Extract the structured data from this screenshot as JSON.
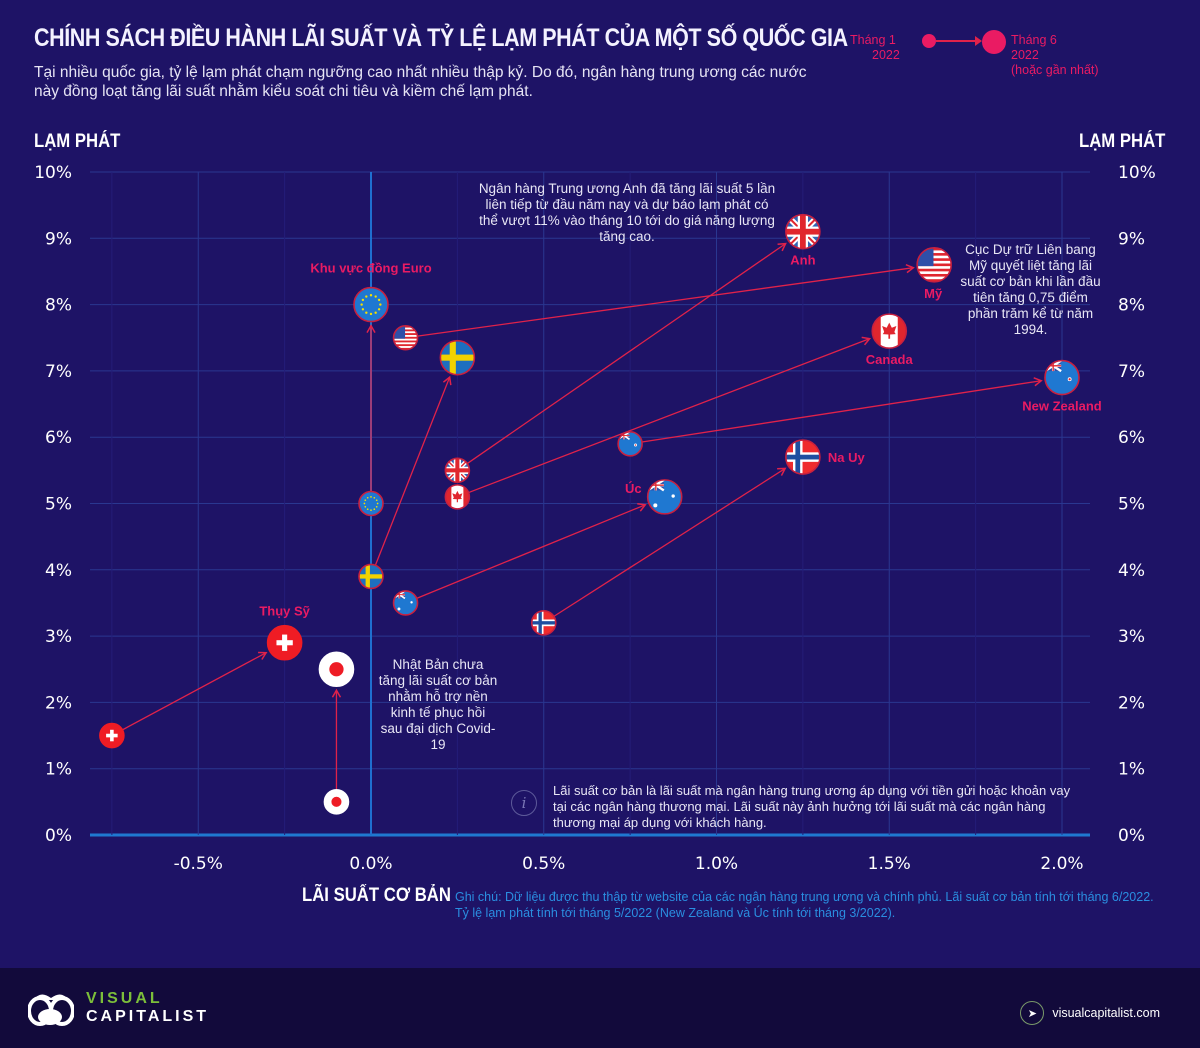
{
  "header": {
    "title": "CHÍNH SÁCH ĐIỀU HÀNH LÃI SUẤT VÀ TỶ LỆ LẠM PHÁT CỦA MỘT SỐ QUỐC GIA",
    "subtitle": "Tại nhiều quốc gia, tỷ lệ lạm phát chạm ngưỡng cao nhất nhiều thập kỷ. Do đó, ngân hàng trung ương các nước này đồng loạt tăng lãi suất nhằm kiểu soát chi tiêu và kiềm chế lạm phát."
  },
  "legend": {
    "start_line1": "Tháng 1",
    "start_line2": "2022",
    "end_line1": "Tháng 6",
    "end_line2": "2022",
    "end_line3": "(hoặc gần nhất)",
    "color": "#ea1b63"
  },
  "annotations": {
    "uk": "Ngân hàng Trung ương Anh đã tăng lãi suất 5 lần liên tiếp từ đầu năm nay và dự báo lạm phát có thể vượt 11% vào tháng 10 tới do giá năng lượng tăng cao.",
    "us": "Cục Dự trữ Liên bang Mỹ quyết liệt tăng lãi suất cơ bản khi lần đầu tiên tăng 0,75 điểm phần trăm kể từ năm 1994.",
    "japan": "Nhật Bản chưa tăng lãi suất cơ bản nhằm hỗ trợ nền kinh tế phục hồi sau đại dịch Covid-19",
    "info": "Lãi suất cơ bản là lãi suất mà ngân hàng trung ương áp dụng với tiền gửi hoặc khoản vay tại các ngân hàng thương mại. Lãi suất này ảnh hưởng tới lãi suất mà các ngân hàng thương mại áp dụng với khách hàng.",
    "info_icon": "i"
  },
  "note": "Ghi chú: Dữ liệu được thu thập từ website của các ngân hàng trung ương và chính phủ. Lãi suất cơ bản tính tới tháng 6/2022. Tỷ lệ lạm phát tính tới tháng 5/2022 (New Zealand và Úc tính tới tháng 3/2022).",
  "footer": {
    "brand_line1": "VISUAL",
    "brand_line2": "CAPITALIST",
    "url": "visualcapitalist.com",
    "cursor_icon": "➤"
  },
  "chart_data": {
    "type": "scatter",
    "title": "CHÍNH SÁCH ĐIỀU HÀNH LÃI SUẤT VÀ TỶ LỆ LẠM PHÁT CỦA MỘT SỐ QUỐC GIA",
    "xlabel": "LÃI SUẤT CƠ BẢN",
    "ylabel": "LẠM PHÁT",
    "xlim": [
      -0.85,
      2.08
    ],
    "ylim": [
      0,
      10
    ],
    "xticks": [
      -0.5,
      0.0,
      0.5,
      1.0,
      1.5,
      2.0
    ],
    "xtick_labels": [
      "-0.5%",
      "0.0%",
      "0.5%",
      "1.0%",
      "1.5%",
      "2.0%"
    ],
    "yticks": [
      0,
      1,
      2,
      3,
      4,
      5,
      6,
      7,
      8,
      9,
      10
    ],
    "ytick_labels": [
      "0%",
      "1%",
      "2%",
      "3%",
      "4%",
      "5%",
      "6%",
      "7%",
      "8%",
      "9%",
      "10%"
    ],
    "grid": true,
    "legend_position": "top-right",
    "series": [
      {
        "name": "Khu vực đồng Euro",
        "flag": "eu",
        "jan": {
          "rate": 0.0,
          "inflation": 5.0
        },
        "jun": {
          "rate": 0.0,
          "inflation": 8.0
        },
        "label_pos": "above"
      },
      {
        "name": "Mỹ",
        "flag": "us",
        "jan": {
          "rate": 0.1,
          "inflation": 7.5
        },
        "jun": {
          "rate": 1.63,
          "inflation": 8.6
        },
        "label_pos": "below"
      },
      {
        "name": "Thụy Điển",
        "flag": "se",
        "jan": {
          "rate": 0.0,
          "inflation": 3.9
        },
        "jun": {
          "rate": 0.25,
          "inflation": 7.2
        },
        "label_pos": "none"
      },
      {
        "name": "Anh",
        "flag": "uk",
        "jan": {
          "rate": 0.25,
          "inflation": 5.5
        },
        "jun": {
          "rate": 1.25,
          "inflation": 9.1
        },
        "label_pos": "below"
      },
      {
        "name": "Canada",
        "flag": "ca",
        "jan": {
          "rate": 0.25,
          "inflation": 5.1
        },
        "jun": {
          "rate": 1.5,
          "inflation": 7.6
        },
        "label_pos": "below"
      },
      {
        "name": "New Zealand",
        "flag": "nz",
        "jan": {
          "rate": 0.75,
          "inflation": 5.9
        },
        "jun": {
          "rate": 2.0,
          "inflation": 6.9
        },
        "label_pos": "below"
      },
      {
        "name": "Úc",
        "flag": "au",
        "jan": {
          "rate": 0.1,
          "inflation": 3.5
        },
        "jun": {
          "rate": 0.85,
          "inflation": 5.1
        },
        "label_pos": "left"
      },
      {
        "name": "Na Uy",
        "flag": "no",
        "jan": {
          "rate": 0.5,
          "inflation": 3.2
        },
        "jun": {
          "rate": 1.25,
          "inflation": 5.7
        },
        "label_pos": "right"
      },
      {
        "name": "Thụy Sỹ",
        "flag": "ch",
        "jan": {
          "rate": -0.75,
          "inflation": 1.5
        },
        "jun": {
          "rate": -0.25,
          "inflation": 2.9
        },
        "label_pos": "above"
      },
      {
        "name": "Nhật Bản",
        "flag": "jp",
        "jan": {
          "rate": -0.1,
          "inflation": 0.5
        },
        "jun": {
          "rate": -0.1,
          "inflation": 2.5
        },
        "label_pos": "none"
      }
    ]
  }
}
